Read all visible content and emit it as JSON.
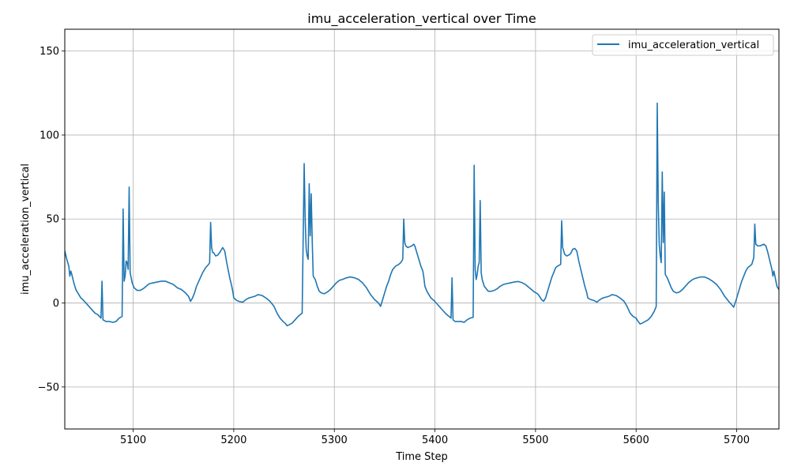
{
  "chart_data": {
    "type": "line",
    "title": "imu_acceleration_vertical over Time",
    "xlabel": "Time Step",
    "ylabel": "imu_acceleration_vertical",
    "xlim": [
      5032,
      5742
    ],
    "ylim": [
      -75,
      163
    ],
    "x_ticks": [
      5100,
      5200,
      5300,
      5400,
      5500,
      5600,
      5700
    ],
    "y_ticks": [
      -50,
      0,
      50,
      100,
      150
    ],
    "grid": true,
    "legend_position": "top-right",
    "series": [
      {
        "name": "imu_acceleration_vertical",
        "color": "#1f77b4",
        "points": [
          [
            5032,
            31
          ],
          [
            5034,
            26
          ],
          [
            5036,
            22
          ],
          [
            5037,
            16
          ],
          [
            5038,
            19
          ],
          [
            5039,
            17
          ],
          [
            5041,
            12
          ],
          [
            5043,
            8
          ],
          [
            5046,
            5
          ],
          [
            5048,
            3
          ],
          [
            5050,
            2
          ],
          [
            5053,
            0
          ],
          [
            5056,
            -2
          ],
          [
            5059,
            -4
          ],
          [
            5062,
            -6
          ],
          [
            5065,
            -7
          ],
          [
            5068,
            -9
          ],
          [
            5069,
            13
          ],
          [
            5070,
            -10
          ],
          [
            5073,
            -11
          ],
          [
            5076,
            -11
          ],
          [
            5080,
            -11.5
          ],
          [
            5083,
            -11
          ],
          [
            5086,
            -9
          ],
          [
            5089,
            -8
          ],
          [
            5090,
            56
          ],
          [
            5091,
            13
          ],
          [
            5092,
            16
          ],
          [
            5093,
            25
          ],
          [
            5094,
            24
          ],
          [
            5095,
            20
          ],
          [
            5096,
            69
          ],
          [
            5097,
            18
          ],
          [
            5099,
            12
          ],
          [
            5101,
            9
          ],
          [
            5104,
            7.5
          ],
          [
            5107,
            7.5
          ],
          [
            5110,
            8.5
          ],
          [
            5113,
            10
          ],
          [
            5116,
            11.5
          ],
          [
            5120,
            12
          ],
          [
            5124,
            12.5
          ],
          [
            5128,
            13
          ],
          [
            5132,
            13
          ],
          [
            5136,
            12
          ],
          [
            5140,
            11
          ],
          [
            5144,
            9
          ],
          [
            5148,
            8
          ],
          [
            5152,
            6
          ],
          [
            5155,
            4
          ],
          [
            5157,
            1
          ],
          [
            5159,
            3
          ],
          [
            5161,
            6
          ],
          [
            5163,
            10
          ],
          [
            5166,
            14
          ],
          [
            5169,
            18
          ],
          [
            5172,
            21
          ],
          [
            5175,
            23
          ],
          [
            5176,
            24
          ],
          [
            5177,
            48
          ],
          [
            5178,
            33
          ],
          [
            5179,
            30
          ],
          [
            5180,
            30
          ],
          [
            5182,
            28
          ],
          [
            5184,
            28.5
          ],
          [
            5186,
            30
          ],
          [
            5188,
            32
          ],
          [
            5189,
            33
          ],
          [
            5191,
            31
          ],
          [
            5193,
            24
          ],
          [
            5196,
            15
          ],
          [
            5198,
            10
          ],
          [
            5199,
            7
          ],
          [
            5200,
            3
          ],
          [
            5203,
            1.5
          ],
          [
            5206,
            0.8
          ],
          [
            5209,
            0.5
          ],
          [
            5212,
            2
          ],
          [
            5215,
            3
          ],
          [
            5218,
            3.5
          ],
          [
            5221,
            4
          ],
          [
            5224,
            5
          ],
          [
            5228,
            4.5
          ],
          [
            5232,
            3
          ],
          [
            5236,
            1
          ],
          [
            5240,
            -2
          ],
          [
            5243,
            -6
          ],
          [
            5246,
            -9
          ],
          [
            5249,
            -11
          ],
          [
            5251,
            -12
          ],
          [
            5253,
            -13.5
          ],
          [
            5255,
            -13
          ],
          [
            5258,
            -12
          ],
          [
            5261,
            -10
          ],
          [
            5264,
            -8
          ],
          [
            5268,
            -6
          ],
          [
            5270,
            83
          ],
          [
            5271,
            50
          ],
          [
            5272,
            32
          ],
          [
            5273,
            28
          ],
          [
            5274,
            26
          ],
          [
            5275,
            71
          ],
          [
            5276,
            40
          ],
          [
            5277,
            65
          ],
          [
            5278,
            37
          ],
          [
            5279,
            16
          ],
          [
            5281,
            14
          ],
          [
            5283,
            10
          ],
          [
            5285,
            7
          ],
          [
            5287,
            6
          ],
          [
            5290,
            5.5
          ],
          [
            5293,
            6.5
          ],
          [
            5296,
            8
          ],
          [
            5299,
            10
          ],
          [
            5302,
            12
          ],
          [
            5305,
            13.5
          ],
          [
            5308,
            14
          ],
          [
            5312,
            15
          ],
          [
            5316,
            15.5
          ],
          [
            5320,
            15
          ],
          [
            5324,
            14
          ],
          [
            5328,
            12
          ],
          [
            5332,
            9
          ],
          [
            5336,
            5
          ],
          [
            5340,
            2
          ],
          [
            5343,
            0.5
          ],
          [
            5345,
            -1
          ],
          [
            5346,
            -2
          ],
          [
            5348,
            2
          ],
          [
            5350,
            6
          ],
          [
            5352,
            10
          ],
          [
            5354,
            13
          ],
          [
            5356,
            17
          ],
          [
            5358,
            20
          ],
          [
            5361,
            22
          ],
          [
            5364,
            23
          ],
          [
            5366,
            24
          ],
          [
            5368,
            26
          ],
          [
            5369,
            50
          ],
          [
            5370,
            36
          ],
          [
            5371,
            34
          ],
          [
            5373,
            33
          ],
          [
            5375,
            33.5
          ],
          [
            5377,
            34
          ],
          [
            5379,
            35
          ],
          [
            5380,
            34
          ],
          [
            5382,
            30
          ],
          [
            5384,
            26
          ],
          [
            5386,
            22
          ],
          [
            5388,
            19
          ],
          [
            5389,
            15
          ],
          [
            5390,
            10
          ],
          [
            5392,
            7
          ],
          [
            5394,
            5
          ],
          [
            5396,
            3
          ],
          [
            5399,
            1.5
          ],
          [
            5402,
            -0.5
          ],
          [
            5405,
            -2.5
          ],
          [
            5408,
            -4.5
          ],
          [
            5411,
            -6.5
          ],
          [
            5414,
            -8
          ],
          [
            5416,
            -9
          ],
          [
            5417,
            15
          ],
          [
            5418,
            -10
          ],
          [
            5420,
            -11
          ],
          [
            5423,
            -11
          ],
          [
            5426,
            -11
          ],
          [
            5429,
            -11.5
          ],
          [
            5432,
            -10
          ],
          [
            5435,
            -9
          ],
          [
            5438,
            -8.5
          ],
          [
            5439,
            82
          ],
          [
            5440,
            20
          ],
          [
            5441,
            14
          ],
          [
            5442,
            17
          ],
          [
            5443,
            22
          ],
          [
            5444,
            24
          ],
          [
            5445,
            61
          ],
          [
            5446,
            18
          ],
          [
            5447,
            14
          ],
          [
            5449,
            10
          ],
          [
            5451,
            8.5
          ],
          [
            5453,
            7
          ],
          [
            5456,
            7
          ],
          [
            5459,
            7.5
          ],
          [
            5462,
            8.5
          ],
          [
            5465,
            10
          ],
          [
            5468,
            11
          ],
          [
            5471,
            11.5
          ],
          [
            5475,
            12
          ],
          [
            5479,
            12.5
          ],
          [
            5483,
            12.8
          ],
          [
            5487,
            12
          ],
          [
            5490,
            11
          ],
          [
            5493,
            9.5
          ],
          [
            5496,
            8
          ],
          [
            5499,
            6.5
          ],
          [
            5502,
            5.5
          ],
          [
            5504,
            4
          ],
          [
            5506,
            2
          ],
          [
            5508,
            1
          ],
          [
            5510,
            3
          ],
          [
            5512,
            7
          ],
          [
            5514,
            11
          ],
          [
            5516,
            15
          ],
          [
            5518,
            18
          ],
          [
            5520,
            21
          ],
          [
            5522,
            22
          ],
          [
            5525,
            23
          ],
          [
            5526,
            49
          ],
          [
            5527,
            33
          ],
          [
            5529,
            29
          ],
          [
            5531,
            28
          ],
          [
            5533,
            28.5
          ],
          [
            5535,
            29.5
          ],
          [
            5537,
            32
          ],
          [
            5539,
            32.5
          ],
          [
            5541,
            31
          ],
          [
            5543,
            25
          ],
          [
            5545,
            20
          ],
          [
            5547,
            15
          ],
          [
            5549,
            10
          ],
          [
            5551,
            6
          ],
          [
            5552,
            3
          ],
          [
            5555,
            2
          ],
          [
            5558,
            1.5
          ],
          [
            5561,
            0.5
          ],
          [
            5564,
            2
          ],
          [
            5567,
            3
          ],
          [
            5570,
            3.5
          ],
          [
            5573,
            4
          ],
          [
            5576,
            5
          ],
          [
            5580,
            4.5
          ],
          [
            5584,
            3
          ],
          [
            5588,
            1
          ],
          [
            5591,
            -2
          ],
          [
            5594,
            -6
          ],
          [
            5597,
            -8
          ],
          [
            5600,
            -9
          ],
          [
            5602,
            -11
          ],
          [
            5604,
            -12.5
          ],
          [
            5606,
            -12
          ],
          [
            5609,
            -11
          ],
          [
            5612,
            -10
          ],
          [
            5615,
            -8
          ],
          [
            5618,
            -5
          ],
          [
            5620,
            -2
          ],
          [
            5621,
            119
          ],
          [
            5622,
            60
          ],
          [
            5623,
            35
          ],
          [
            5624,
            28
          ],
          [
            5625,
            24
          ],
          [
            5626,
            78
          ],
          [
            5627,
            36
          ],
          [
            5628,
            66
          ],
          [
            5629,
            17
          ],
          [
            5631,
            15
          ],
          [
            5633,
            12
          ],
          [
            5635,
            9
          ],
          [
            5637,
            7
          ],
          [
            5640,
            6
          ],
          [
            5643,
            6.5
          ],
          [
            5646,
            8
          ],
          [
            5649,
            10
          ],
          [
            5652,
            12
          ],
          [
            5655,
            13.5
          ],
          [
            5658,
            14.5
          ],
          [
            5661,
            15
          ],
          [
            5664,
            15.5
          ],
          [
            5668,
            15.5
          ],
          [
            5672,
            14.5
          ],
          [
            5676,
            13
          ],
          [
            5680,
            11
          ],
          [
            5684,
            8
          ],
          [
            5688,
            4
          ],
          [
            5692,
            1
          ],
          [
            5695,
            -1
          ],
          [
            5697,
            -2.5
          ],
          [
            5699,
            1
          ],
          [
            5701,
            5
          ],
          [
            5703,
            9
          ],
          [
            5705,
            13
          ],
          [
            5707,
            16
          ],
          [
            5709,
            19
          ],
          [
            5711,
            21
          ],
          [
            5713,
            22
          ],
          [
            5715,
            23
          ],
          [
            5717,
            27
          ],
          [
            5718,
            47
          ],
          [
            5719,
            35
          ],
          [
            5721,
            34
          ],
          [
            5723,
            34
          ],
          [
            5725,
            34.5
          ],
          [
            5727,
            35
          ],
          [
            5729,
            34
          ],
          [
            5731,
            30
          ],
          [
            5733,
            25
          ],
          [
            5735,
            20
          ],
          [
            5736,
            16
          ],
          [
            5737,
            19
          ],
          [
            5739,
            13
          ],
          [
            5740,
            10
          ],
          [
            5742,
            8
          ]
        ]
      }
    ]
  }
}
